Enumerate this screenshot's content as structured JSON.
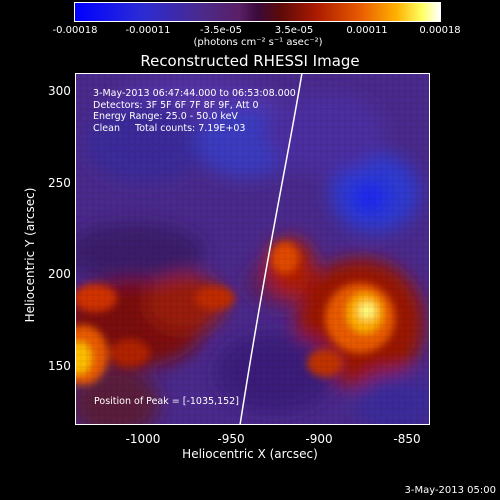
{
  "colorbar": {
    "ticks": [
      "-0.00018",
      "-0.00011",
      "-3.5e-05",
      "3.5e-05",
      "0.00011",
      "0.00018"
    ],
    "units": "(photons cm⁻² s⁻¹ asec⁻²)"
  },
  "title": "Reconstructed RHESSI Image",
  "annotations": {
    "time_range": "3-May-2013 06:47:44.000 to 06:53:08.000",
    "detectors": "Detectors: 3F 5F 6F 7F 8F 9F, Att 0",
    "energy": "Energy Range: 25.0 - 50.0 keV",
    "clean": "Clean     Total counts: 7.19E+03",
    "peak": "Position of Peak = [-1035,152]"
  },
  "axes": {
    "xlabel": "Heliocentric X (arcsec)",
    "ylabel": "Heliocentric Y (arcsec)",
    "xticks": [
      "-1000",
      "-950",
      "-900",
      "-850"
    ],
    "yticks": [
      "300",
      "250",
      "200",
      "150"
    ],
    "xlim": [
      -1035,
      -840
    ],
    "ylim": [
      118,
      311
    ]
  },
  "footer": {
    "stamp": "3-May-2013 05:00"
  }
}
